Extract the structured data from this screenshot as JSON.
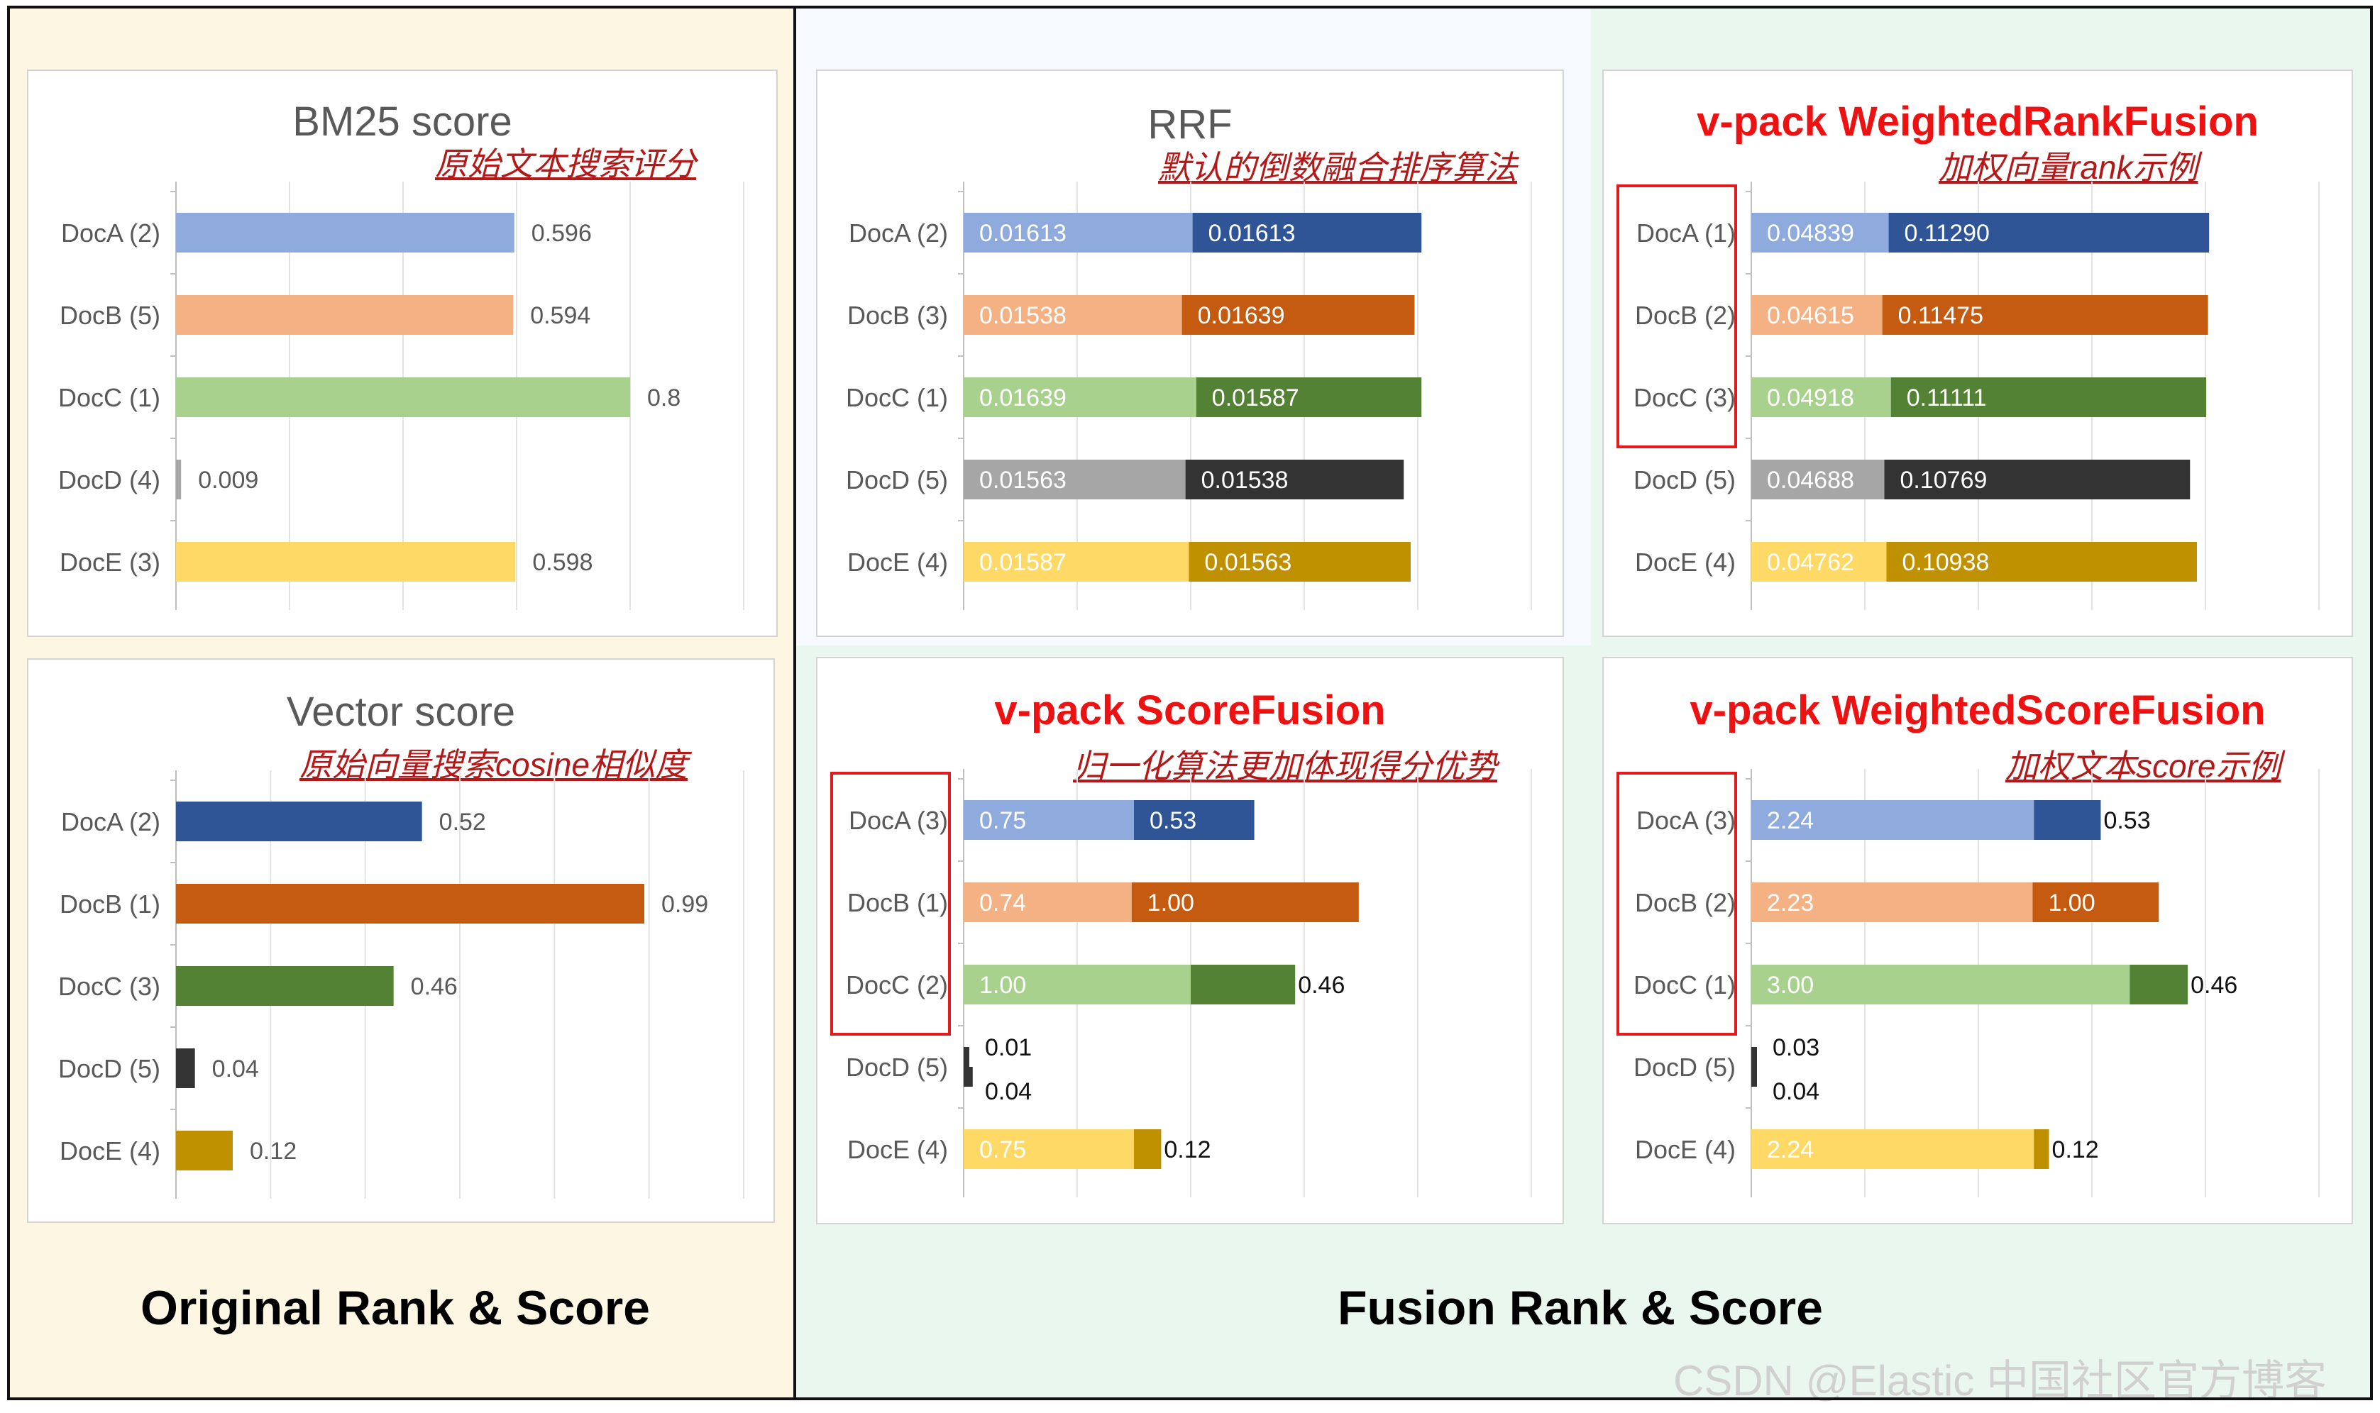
{
  "sections": {
    "left_label": "Original Rank & Score",
    "right_label": "Fusion Rank & Score"
  },
  "watermark": "CSDN @Elastic 中国社区官方博客",
  "colors": {
    "left_bg": "#fdf6e3",
    "right_bg": "#eaf7ee",
    "light": {
      "A": "#8faadc",
      "B": "#f4b183",
      "C": "#a9d18e",
      "D": "#a6a6a6",
      "E": "#ffd966"
    },
    "dark": {
      "A": "#2f5597",
      "B": "#c55a11",
      "C": "#548235",
      "D": "#333333",
      "E": "#bf9000"
    },
    "highlight_box": "#e31a1c",
    "title_red": "#ee1111"
  },
  "chart_data": [
    {
      "id": "bm25",
      "type": "bar",
      "title": "BM25 score",
      "title_style": "plain",
      "subtitle": "原始文本搜索评分",
      "categories": [
        "DocA (2)",
        "DocB (5)",
        "DocC (1)",
        "DocD (4)",
        "DocE (3)"
      ],
      "series": [
        {
          "values": [
            0.596,
            0.594,
            0.8,
            0.009,
            0.598
          ],
          "labels": [
            "0.596",
            "0.594",
            "0.8",
            "0.009",
            "0.598"
          ],
          "style": "light"
        }
      ],
      "label_mode": "outside",
      "xlim": [
        0,
        1
      ]
    },
    {
      "id": "vector",
      "type": "bar",
      "title": "Vector score",
      "title_style": "plain",
      "subtitle": "原始向量搜索cosine相似度",
      "categories": [
        "DocA (2)",
        "DocB (1)",
        "DocC (3)",
        "DocD (5)",
        "DocE (4)"
      ],
      "series": [
        {
          "values": [
            0.52,
            0.99,
            0.46,
            0.04,
            0.12
          ],
          "labels": [
            "0.52",
            "0.99",
            "0.46",
            "0.04",
            "0.12"
          ],
          "style": "dark"
        }
      ],
      "label_mode": "outside",
      "xlim": [
        0,
        1.2
      ]
    },
    {
      "id": "rrf",
      "type": "bar",
      "stacked": true,
      "title": "RRF",
      "title_style": "plain",
      "subtitle": "默认的倒数融合排序算法",
      "categories": [
        "DocA (2)",
        "DocB (3)",
        "DocC (1)",
        "DocD (5)",
        "DocE (4)"
      ],
      "series": [
        {
          "values": [
            0.01613,
            0.01538,
            0.01639,
            0.01563,
            0.01587
          ],
          "labels": [
            "0.01613",
            "0.01538",
            "0.01639",
            "0.01563",
            "0.01587"
          ],
          "style": "light"
        },
        {
          "values": [
            0.01613,
            0.01639,
            0.01587,
            0.01538,
            0.01563
          ],
          "labels": [
            "0.01613",
            "0.01639",
            "0.01587",
            "0.01538",
            "0.01563"
          ],
          "style": "dark"
        }
      ],
      "label_mode": "inside",
      "xlim": [
        0,
        0.04
      ]
    },
    {
      "id": "weighted-rank-fusion",
      "type": "bar",
      "stacked": true,
      "title": "v-pack WeightedRankFusion",
      "title_style": "red",
      "subtitle": "加权向量rank示例",
      "categories": [
        "DocA (1)",
        "DocB (2)",
        "DocC (3)",
        "DocD (5)",
        "DocE (4)"
      ],
      "highlight_rows": 3,
      "series": [
        {
          "values": [
            0.04839,
            0.04615,
            0.04918,
            0.04688,
            0.04762
          ],
          "labels": [
            "0.04839",
            "0.04615",
            "0.04918",
            "0.04688",
            "0.04762"
          ],
          "style": "light"
        },
        {
          "values": [
            0.1129,
            0.11475,
            0.11111,
            0.10769,
            0.10938
          ],
          "labels": [
            "0.11290",
            "0.11475",
            "0.11111",
            "0.10769",
            "0.10938"
          ],
          "style": "dark"
        }
      ],
      "label_mode": "inside",
      "xlim": [
        0,
        0.2
      ]
    },
    {
      "id": "score-fusion",
      "type": "bar",
      "stacked": true,
      "title": "v-pack ScoreFusion",
      "title_style": "red",
      "subtitle": "归一化算法更加体现得分优势",
      "categories": [
        "DocA (3)",
        "DocB (1)",
        "DocC (2)",
        "DocD (5)",
        "DocE (4)"
      ],
      "highlight_rows": 3,
      "series": [
        {
          "values": [
            0.75,
            0.74,
            1.0,
            0.01,
            0.75
          ],
          "labels": [
            "0.75",
            "0.74",
            "1.00",
            "0.01",
            "0.75"
          ],
          "style": "light"
        },
        {
          "values": [
            0.53,
            1.0,
            0.46,
            0.04,
            0.12
          ],
          "labels": [
            "0.53",
            "1.00",
            "0.46",
            "0.04",
            "0.12"
          ],
          "style": "dark"
        }
      ],
      "label_mode": "inside",
      "xlim": [
        0,
        2.5
      ]
    },
    {
      "id": "weighted-score-fusion",
      "type": "bar",
      "stacked": true,
      "title": "v-pack WeightedScoreFusion",
      "title_style": "red",
      "subtitle": "加权文本score示例",
      "categories": [
        "DocA (3)",
        "DocB (2)",
        "DocC (1)",
        "DocD (5)",
        "DocE (4)"
      ],
      "highlight_rows": 3,
      "series": [
        {
          "values": [
            2.24,
            2.23,
            3.0,
            0.03,
            2.24
          ],
          "labels": [
            "2.24",
            "2.23",
            "3.00",
            "0.03",
            "2.24"
          ],
          "style": "light"
        },
        {
          "values": [
            0.53,
            1.0,
            0.46,
            0.04,
            0.12
          ],
          "labels": [
            "0.53",
            "1.00",
            "0.46",
            "0.04",
            "0.12"
          ],
          "style": "dark"
        }
      ],
      "label_mode": "inside",
      "xlim": [
        0,
        4.5
      ]
    }
  ]
}
